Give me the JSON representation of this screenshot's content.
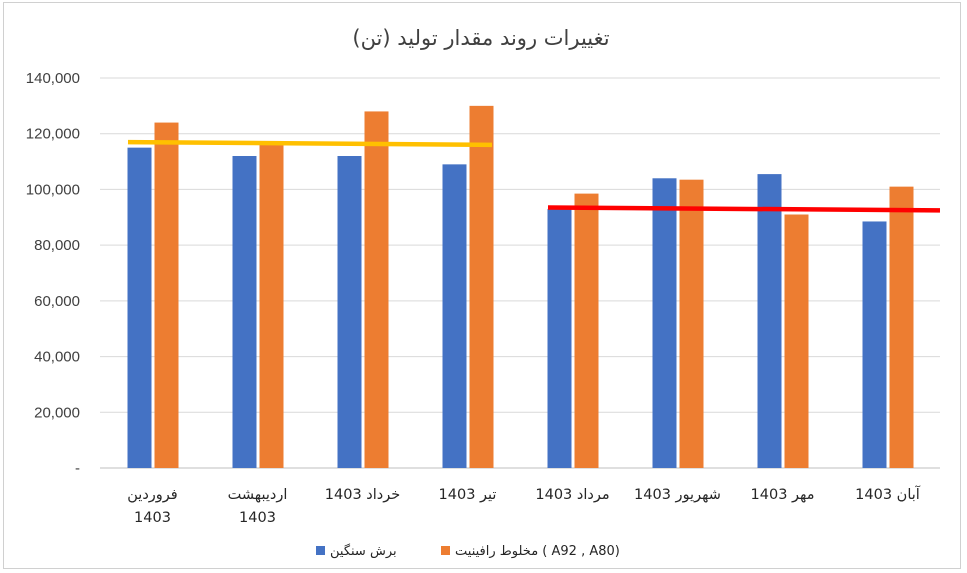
{
  "chart_data": {
    "type": "bar",
    "title": "تغییرات روند مقدار تولید (تن)",
    "categories": [
      [
        "فروردین",
        "1403"
      ],
      [
        "اردیبهشت",
        "1403"
      ],
      [
        "خرداد 1403"
      ],
      [
        "تیر 1403"
      ],
      [
        "مرداد 1403"
      ],
      [
        "شهریور 1403"
      ],
      [
        "مهر 1403"
      ],
      [
        "آبان 1403"
      ]
    ],
    "series": [
      {
        "name": "برش سنگین",
        "color": "#4472C4",
        "values": [
          115000,
          112000,
          112000,
          109000,
          93000,
          104000,
          105500,
          88500
        ]
      },
      {
        "name": "مخلوط رافینیت ( A92 , A80)",
        "color": "#ED7D31",
        "values": [
          124000,
          116500,
          128000,
          130000,
          98500,
          103500,
          91000,
          101000
        ]
      }
    ],
    "y_ticks": [
      "-",
      "20,000",
      "40,000",
      "60,000",
      "80,000",
      "100,000",
      "120,000",
      "140,000"
    ],
    "ylim": [
      0,
      140000
    ],
    "grid": true,
    "legend_position": "bottom",
    "trend_lines": [
      {
        "color": "#FFC000",
        "from_category": 0,
        "to_category": 3,
        "start_value": 117000,
        "end_value": 116000
      },
      {
        "color": "#FF0000",
        "from_category": 4,
        "to_category": 7,
        "start_value": 93500,
        "end_value": 92500
      }
    ]
  }
}
